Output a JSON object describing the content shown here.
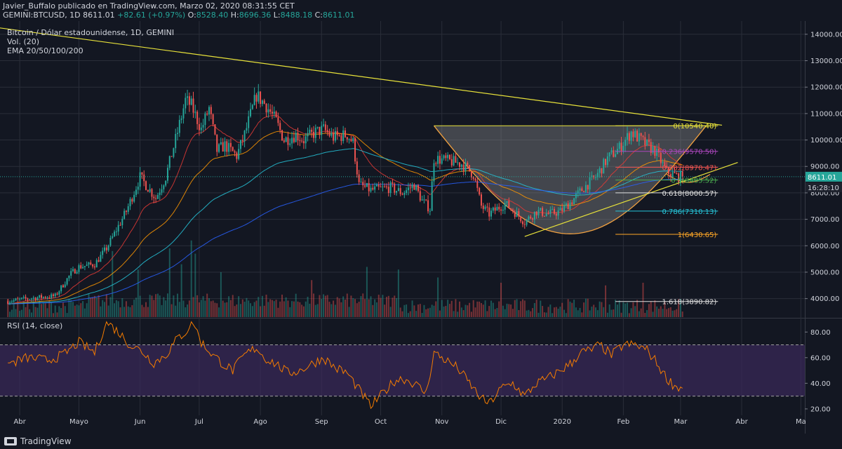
{
  "header": {
    "author_line": "Javier_Buffalo publicado en TradingView.com, Marzo 02, 2020 08:31:55 CET",
    "symbol": "GEMINI:BTCUSD, 1D",
    "last": "8611.01",
    "change": "+82.61 (+0.97%)",
    "o_label": "O:",
    "o": "8528.40",
    "h_label": "H:",
    "h": "8696.36",
    "l_label": "L:",
    "l": "8488.18",
    "c_label": "C:",
    "c": "8611.01"
  },
  "legend": {
    "title": "Bitcoin / Dólar estadounidense, 1D, GEMINI",
    "volume": "Vol. (20)",
    "ema": "EMA 20/50/100/200",
    "rsi": "RSI (14, close)"
  },
  "footer": {
    "brand": "TradingView"
  },
  "colors": {
    "background": "#131722",
    "grid": "#2a2e39",
    "up": "#26a69a",
    "down": "#ef5350",
    "trendline": "#e8e23a",
    "cup": "#f0a040",
    "rsi": "#f57c00",
    "rsi_band": "#3a2a5a",
    "ema20": "#e53935",
    "ema50": "#ff9800",
    "ema100": "#26c6da",
    "ema200": "#2962ff"
  },
  "chart_data": [
    {
      "type": "candlestick",
      "ylim": [
        3300,
        14500
      ],
      "y_ticks": [
        "14000.00",
        "13000.00",
        "12000.00",
        "11000.00",
        "10000.00",
        "9000.00",
        "8000.00",
        "7000.00",
        "6000.00",
        "5000.00",
        "4000.00"
      ],
      "y_tick_values": [
        14000,
        13000,
        12000,
        11000,
        10000,
        9000,
        8000,
        7000,
        6000,
        5000,
        4000
      ],
      "x_tick_labels": [
        "Abr",
        "Mayo",
        "Jun",
        "Jul",
        "Ago",
        "Sep",
        "Oct",
        "Nov",
        "Dic",
        "2020",
        "Feb",
        "Mar",
        "Abr",
        "Ma"
      ],
      "x_tick_days": [
        6,
        36,
        67,
        97,
        128,
        159,
        189,
        220,
        250,
        281,
        312,
        341,
        372,
        402
      ],
      "price_anchors": [
        [
          0,
          3900
        ],
        [
          8,
          3980
        ],
        [
          16,
          4050
        ],
        [
          24,
          4100
        ],
        [
          32,
          4950
        ],
        [
          36,
          5200
        ],
        [
          44,
          5300
        ],
        [
          50,
          5900
        ],
        [
          60,
          7300
        ],
        [
          67,
          8600
        ],
        [
          75,
          7800
        ],
        [
          80,
          8600
        ],
        [
          86,
          10300
        ],
        [
          90,
          11500
        ],
        [
          93,
          11300
        ],
        [
          98,
          10400
        ],
        [
          102,
          11200
        ],
        [
          106,
          9600
        ],
        [
          110,
          9800
        ],
        [
          116,
          9400
        ],
        [
          120,
          10200
        ],
        [
          126,
          11700
        ],
        [
          131,
          11300
        ],
        [
          136,
          10700
        ],
        [
          140,
          10000
        ],
        [
          146,
          10200
        ],
        [
          150,
          10000
        ],
        [
          156,
          10300
        ],
        [
          160,
          10400
        ],
        [
          165,
          10100
        ],
        [
          172,
          10200
        ],
        [
          175,
          9900
        ],
        [
          178,
          8300
        ],
        [
          184,
          8100
        ],
        [
          194,
          8200
        ],
        [
          200,
          8000
        ],
        [
          206,
          8300
        ],
        [
          210,
          7700
        ],
        [
          214,
          7400
        ],
        [
          216,
          9300
        ],
        [
          224,
          9200
        ],
        [
          230,
          9100
        ],
        [
          236,
          8700
        ],
        [
          240,
          7500
        ],
        [
          244,
          7200
        ],
        [
          252,
          7600
        ],
        [
          258,
          7200
        ],
        [
          262,
          6900
        ],
        [
          268,
          7300
        ],
        [
          274,
          7200
        ],
        [
          280,
          7300
        ],
        [
          286,
          7700
        ],
        [
          292,
          8200
        ],
        [
          298,
          8600
        ],
        [
          304,
          9300
        ],
        [
          310,
          9700
        ],
        [
          316,
          10300
        ],
        [
          320,
          10050
        ],
        [
          324,
          9800
        ],
        [
          328,
          9600
        ],
        [
          334,
          8800
        ],
        [
          340,
          8600
        ]
      ],
      "volume_spikes": [
        [
          53,
          5800
        ],
        [
          66,
          5100
        ],
        [
          82,
          5900
        ],
        [
          88,
          5300
        ],
        [
          93,
          6200
        ],
        [
          95,
          5700
        ],
        [
          108,
          5000
        ],
        [
          154,
          4700
        ],
        [
          182,
          5200
        ],
        [
          198,
          5100
        ],
        [
          218,
          4800
        ],
        [
          250,
          4600
        ],
        [
          303,
          4500
        ],
        [
          322,
          4600
        ]
      ],
      "last_price": "8611.01",
      "time_left": "16:28:10",
      "trendline": {
        "from": [
          -10,
          14300
        ],
        "to": [
          362,
          10560
        ]
      },
      "support_line": {
        "from": [
          262,
          6350
        ],
        "to": [
          370,
          9150
        ]
      },
      "cup_top": 10540,
      "fibonacci": [
        {
          "label": "0(10540.40)",
          "value": 10540.4,
          "color": "#e8e23a"
        },
        {
          "label": "0.236(9570.50)",
          "value": 9570.5,
          "color": "#ab47bc"
        },
        {
          "label": "0.382(8970.47)",
          "value": 8970.47,
          "color": "#ef5350"
        },
        {
          "label": "0.5(8485.52)",
          "value": 8485.52,
          "color": "#4caf50"
        },
        {
          "label": "0.618(8000.57)",
          "value": 8000.57,
          "color": "#e0e0e0"
        },
        {
          "label": "0.786(7310.13)",
          "value": 7310.13,
          "color": "#26c6da"
        },
        {
          "label": "1(6430.65)",
          "value": 6430.65,
          "color": "#ffa726"
        },
        {
          "label": "1.618(3890.82)",
          "value": 3890.82,
          "color": "#e0e0e0"
        }
      ]
    },
    {
      "type": "line",
      "name": "RSI (14, close)",
      "ylim": [
        15,
        90
      ],
      "y_ticks": [
        "80.00",
        "60.00",
        "40.00",
        "20.00"
      ],
      "y_tick_values": [
        80,
        60,
        40,
        20
      ],
      "bands": [
        30,
        70
      ],
      "rsi_anchors": [
        [
          0,
          55
        ],
        [
          10,
          60
        ],
        [
          20,
          58
        ],
        [
          28,
          62
        ],
        [
          36,
          72
        ],
        [
          44,
          64
        ],
        [
          50,
          88
        ],
        [
          56,
          80
        ],
        [
          62,
          70
        ],
        [
          68,
          65
        ],
        [
          74,
          56
        ],
        [
          80,
          62
        ],
        [
          86,
          75
        ],
        [
          90,
          80
        ],
        [
          94,
          88
        ],
        [
          98,
          72
        ],
        [
          104,
          62
        ],
        [
          110,
          54
        ],
        [
          114,
          50
        ],
        [
          120,
          62
        ],
        [
          126,
          68
        ],
        [
          130,
          60
        ],
        [
          136,
          55
        ],
        [
          142,
          48
        ],
        [
          148,
          50
        ],
        [
          154,
          55
        ],
        [
          160,
          60
        ],
        [
          166,
          52
        ],
        [
          172,
          48
        ],
        [
          178,
          35
        ],
        [
          184,
          22
        ],
        [
          190,
          32
        ],
        [
          196,
          42
        ],
        [
          200,
          44
        ],
        [
          206,
          40
        ],
        [
          212,
          32
        ],
        [
          216,
          64
        ],
        [
          222,
          58
        ],
        [
          228,
          52
        ],
        [
          234,
          40
        ],
        [
          240,
          28
        ],
        [
          244,
          24
        ],
        [
          250,
          36
        ],
        [
          256,
          40
        ],
        [
          262,
          30
        ],
        [
          268,
          40
        ],
        [
          274,
          44
        ],
        [
          280,
          50
        ],
        [
          286,
          56
        ],
        [
          290,
          64
        ],
        [
          296,
          66
        ],
        [
          300,
          70
        ],
        [
          306,
          62
        ],
        [
          312,
          70
        ],
        [
          318,
          70
        ],
        [
          324,
          66
        ],
        [
          328,
          58
        ],
        [
          334,
          44
        ],
        [
          338,
          38
        ],
        [
          342,
          36
        ]
      ]
    }
  ]
}
